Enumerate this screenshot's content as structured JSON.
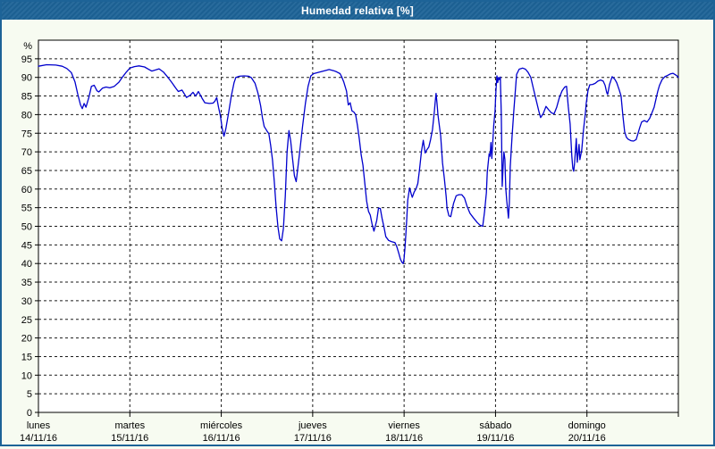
{
  "window": {
    "title": "Humedad relativa [%]"
  },
  "colors": {
    "title_bar": "#1d6397",
    "frame": "#1d6397",
    "page_bg": "#f7fbf1",
    "plot_bg": "#ffffff",
    "grid": "#1a1a1a",
    "line": "#0000cd",
    "text": "#000000"
  },
  "chart_data": {
    "type": "line",
    "title": "Humedad relativa [%]",
    "xlabel": "",
    "ylabel": "%",
    "ylim": [
      0,
      100
    ],
    "ytick_step": 5,
    "ytick_label_max": 95,
    "xlim_days": [
      0,
      7
    ],
    "grid": true,
    "grid_style": "dashed",
    "legend_position": "none",
    "days": [
      {
        "name": "lunes",
        "date": "14/11/16"
      },
      {
        "name": "martes",
        "date": "15/11/16"
      },
      {
        "name": "miércoles",
        "date": "16/11/16"
      },
      {
        "name": "jueves",
        "date": "17/11/16"
      },
      {
        "name": "viernes",
        "date": "18/11/16"
      },
      {
        "name": "sábado",
        "date": "19/11/16"
      },
      {
        "name": "domingo",
        "date": "20/11/16"
      }
    ],
    "series": [
      {
        "name": "Humedad relativa [%]",
        "color": "#0000cd",
        "points": [
          [
            0,
            93
          ],
          [
            0.09,
            93.4
          ],
          [
            0.19,
            93.3
          ],
          [
            0.26,
            93
          ],
          [
            0.31,
            92.4
          ],
          [
            0.36,
            91.3
          ],
          [
            0.4,
            88.8
          ],
          [
            0.43,
            85.5
          ],
          [
            0.46,
            82.6
          ],
          [
            0.48,
            81.6
          ],
          [
            0.5,
            83
          ],
          [
            0.52,
            82
          ],
          [
            0.55,
            84.5
          ],
          [
            0.58,
            87.6
          ],
          [
            0.61,
            87.9
          ],
          [
            0.64,
            86.4
          ],
          [
            0.66,
            86.1
          ],
          [
            0.7,
            87.1
          ],
          [
            0.74,
            87.4
          ],
          [
            0.78,
            87.2
          ],
          [
            0.83,
            87.6
          ],
          [
            0.88,
            88.7
          ],
          [
            0.92,
            90.1
          ],
          [
            0.96,
            91.4
          ],
          [
            1,
            92.5
          ],
          [
            1.05,
            92.9
          ],
          [
            1.1,
            93.1
          ],
          [
            1.16,
            92.8
          ],
          [
            1.21,
            92.1
          ],
          [
            1.24,
            91.7
          ],
          [
            1.28,
            92
          ],
          [
            1.32,
            92.3
          ],
          [
            1.37,
            91.4
          ],
          [
            1.42,
            89.9
          ],
          [
            1.46,
            88.6
          ],
          [
            1.5,
            87.2
          ],
          [
            1.53,
            86.2
          ],
          [
            1.57,
            86.6
          ],
          [
            1.62,
            84.6
          ],
          [
            1.66,
            85.2
          ],
          [
            1.69,
            86
          ],
          [
            1.72,
            85
          ],
          [
            1.75,
            86.2
          ],
          [
            1.79,
            84.4
          ],
          [
            1.82,
            83.2
          ],
          [
            1.87,
            83
          ],
          [
            1.91,
            83.1
          ],
          [
            1.93,
            83.6
          ],
          [
            1.95,
            84.6
          ],
          [
            1.97,
            82
          ],
          [
            1.99,
            79.8
          ],
          [
            2.01,
            76.3
          ],
          [
            2.03,
            74.2
          ],
          [
            2.05,
            76.2
          ],
          [
            2.08,
            80.5
          ],
          [
            2.11,
            85
          ],
          [
            2.14,
            88.6
          ],
          [
            2.16,
            90
          ],
          [
            2.2,
            90.3
          ],
          [
            2.25,
            90.4
          ],
          [
            2.3,
            90.3
          ],
          [
            2.33,
            89.9
          ],
          [
            2.37,
            88.4
          ],
          [
            2.4,
            85.9
          ],
          [
            2.43,
            82.4
          ],
          [
            2.45,
            79.2
          ],
          [
            2.47,
            76.8
          ],
          [
            2.5,
            75.6
          ],
          [
            2.52,
            74.9
          ],
          [
            2.54,
            71.8
          ],
          [
            2.56,
            67.8
          ],
          [
            2.58,
            62
          ],
          [
            2.6,
            55.3
          ],
          [
            2.62,
            49.8
          ],
          [
            2.64,
            46.6
          ],
          [
            2.66,
            46.1
          ],
          [
            2.68,
            49.4
          ],
          [
            2.7,
            58
          ],
          [
            2.72,
            70
          ],
          [
            2.74,
            75.7
          ],
          [
            2.76,
            72.8
          ],
          [
            2.78,
            68
          ],
          [
            2.8,
            63.6
          ],
          [
            2.82,
            62
          ],
          [
            2.83,
            64.2
          ],
          [
            2.86,
            70.3
          ],
          [
            2.89,
            77
          ],
          [
            2.92,
            83
          ],
          [
            2.95,
            87.6
          ],
          [
            2.98,
            90.4
          ],
          [
            3.01,
            91
          ],
          [
            3.07,
            91.4
          ],
          [
            3.13,
            91.8
          ],
          [
            3.18,
            92.1
          ],
          [
            3.23,
            91.8
          ],
          [
            3.26,
            91.5
          ],
          [
            3.3,
            91
          ],
          [
            3.32,
            90
          ],
          [
            3.34,
            88.8
          ],
          [
            3.37,
            86.3
          ],
          [
            3.39,
            82.6
          ],
          [
            3.41,
            83.2
          ],
          [
            3.43,
            81
          ],
          [
            3.45,
            80.7
          ],
          [
            3.47,
            80
          ],
          [
            3.49,
            77
          ],
          [
            3.51,
            73.5
          ],
          [
            3.53,
            69.2
          ],
          [
            3.55,
            66.4
          ],
          [
            3.57,
            61.5
          ],
          [
            3.59,
            56.8
          ],
          [
            3.61,
            54
          ],
          [
            3.63,
            53
          ],
          [
            3.65,
            50.6
          ],
          [
            3.67,
            48.7
          ],
          [
            3.68,
            49.6
          ],
          [
            3.7,
            51.5
          ],
          [
            3.72,
            54.9
          ],
          [
            3.74,
            54.8
          ],
          [
            3.76,
            52
          ],
          [
            3.78,
            49.8
          ],
          [
            3.8,
            47.2
          ],
          [
            3.83,
            46.2
          ],
          [
            3.86,
            45.9
          ],
          [
            3.9,
            45.6
          ],
          [
            3.92,
            44.5
          ],
          [
            3.94,
            42.9
          ],
          [
            3.96,
            41.1
          ],
          [
            3.98,
            40.2
          ],
          [
            3.99,
            40
          ],
          [
            4,
            41.3
          ],
          [
            4.01,
            44.5
          ],
          [
            4.02,
            48.2
          ],
          [
            4.03,
            52.3
          ],
          [
            4.04,
            57
          ],
          [
            4.06,
            60.3
          ],
          [
            4.08,
            58.5
          ],
          [
            4.09,
            57.8
          ],
          [
            4.11,
            59.2
          ],
          [
            4.13,
            60
          ],
          [
            4.15,
            61.5
          ],
          [
            4.17,
            65.5
          ],
          [
            4.19,
            70.2
          ],
          [
            4.21,
            73.1
          ],
          [
            4.23,
            69.7
          ],
          [
            4.25,
            70.6
          ],
          [
            4.27,
            71.3
          ],
          [
            4.29,
            73.3
          ],
          [
            4.31,
            76
          ],
          [
            4.33,
            80.6
          ],
          [
            4.34,
            83.3
          ],
          [
            4.35,
            85.7
          ],
          [
            4.36,
            83
          ],
          [
            4.37,
            80
          ],
          [
            4.38,
            78.1
          ],
          [
            4.4,
            74.2
          ],
          [
            4.42,
            67.1
          ],
          [
            4.44,
            63
          ],
          [
            4.46,
            58
          ],
          [
            4.47,
            54.8
          ],
          [
            4.49,
            52.8
          ],
          [
            4.51,
            52.6
          ],
          [
            4.54,
            56.1
          ],
          [
            4.57,
            58.2
          ],
          [
            4.6,
            58.5
          ],
          [
            4.63,
            58.5
          ],
          [
            4.66,
            57.6
          ],
          [
            4.69,
            55.3
          ],
          [
            4.72,
            53.5
          ],
          [
            4.76,
            52.2
          ],
          [
            4.8,
            51
          ],
          [
            4.83,
            50.3
          ],
          [
            4.86,
            50
          ],
          [
            4.88,
            54
          ],
          [
            4.9,
            59
          ],
          [
            4.91,
            64.5
          ],
          [
            4.93,
            69.5
          ],
          [
            4.94,
            68.8
          ],
          [
            4.95,
            72.5
          ],
          [
            4.96,
            68.2
          ],
          [
            4.97,
            72.8
          ],
          [
            4.98,
            77
          ],
          [
            4.995,
            81
          ],
          [
            5.005,
            86.5
          ],
          [
            5.015,
            90.4
          ],
          [
            5.024,
            88.6
          ],
          [
            5.034,
            90
          ],
          [
            5.044,
            89.4
          ],
          [
            5.053,
            90.1
          ],
          [
            5.063,
            80
          ],
          [
            5.073,
            60.7
          ],
          [
            5.083,
            66
          ],
          [
            5.092,
            70
          ],
          [
            5.102,
            68
          ],
          [
            5.112,
            60.2
          ],
          [
            5.122,
            57.1
          ],
          [
            5.132,
            54.7
          ],
          [
            5.141,
            52.2
          ],
          [
            5.151,
            56.3
          ],
          [
            5.161,
            66
          ],
          [
            5.181,
            74
          ],
          [
            5.2,
            81
          ],
          [
            5.23,
            90.8
          ],
          [
            5.259,
            92.2
          ],
          [
            5.298,
            92.5
          ],
          [
            5.327,
            92.2
          ],
          [
            5.356,
            91.4
          ],
          [
            5.386,
            90
          ],
          [
            5.415,
            86.9
          ],
          [
            5.444,
            84
          ],
          [
            5.474,
            80.9
          ],
          [
            5.493,
            79.2
          ],
          [
            5.523,
            80.3
          ],
          [
            5.552,
            82.2
          ],
          [
            5.581,
            81.3
          ],
          [
            5.611,
            80.5
          ],
          [
            5.64,
            80.2
          ],
          [
            5.669,
            82
          ],
          [
            5.699,
            84.6
          ],
          [
            5.728,
            86.4
          ],
          [
            5.757,
            87.4
          ],
          [
            5.777,
            87.6
          ],
          [
            5.796,
            82.2
          ],
          [
            5.816,
            77.5
          ],
          [
            5.835,
            68.8
          ],
          [
            5.845,
            65.6
          ],
          [
            5.855,
            64.8
          ],
          [
            5.865,
            67
          ],
          [
            5.884,
            73.6
          ],
          [
            5.894,
            67.2
          ],
          [
            5.914,
            72
          ],
          [
            5.923,
            67.9
          ],
          [
            5.943,
            70.5
          ],
          [
            5.963,
            76
          ],
          [
            5.982,
            80.2
          ],
          [
            5.992,
            83
          ],
          [
            6.012,
            86.5
          ],
          [
            6.031,
            88
          ],
          [
            6.061,
            88.1
          ],
          [
            6.09,
            88.4
          ],
          [
            6.119,
            89
          ],
          [
            6.149,
            89.3
          ],
          [
            6.178,
            89
          ],
          [
            6.198,
            87.9
          ],
          [
            6.217,
            85.9
          ],
          [
            6.227,
            85.4
          ],
          [
            6.246,
            88
          ],
          [
            6.276,
            90.2
          ],
          [
            6.305,
            89.5
          ],
          [
            6.325,
            88.6
          ],
          [
            6.354,
            86.6
          ],
          [
            6.373,
            85
          ],
          [
            6.393,
            79.8
          ],
          [
            6.412,
            75.4
          ],
          [
            6.432,
            73.9
          ],
          [
            6.451,
            73.4
          ],
          [
            6.481,
            73
          ],
          [
            6.51,
            72.9
          ],
          [
            6.539,
            73.3
          ],
          [
            6.559,
            75
          ],
          [
            6.579,
            76.6
          ],
          [
            6.598,
            78
          ],
          [
            6.628,
            78.4
          ],
          [
            6.657,
            78
          ],
          [
            6.686,
            79
          ],
          [
            6.715,
            80.7
          ],
          [
            6.735,
            82
          ],
          [
            6.754,
            84
          ],
          [
            6.774,
            86.2
          ],
          [
            6.793,
            87.8
          ],
          [
            6.822,
            89.4
          ],
          [
            6.852,
            90.2
          ],
          [
            6.881,
            90.5
          ],
          [
            6.91,
            90.9
          ],
          [
            6.94,
            91.1
          ],
          [
            6.969,
            90.7
          ],
          [
            6.989,
            90.3
          ],
          [
            7,
            90
          ]
        ]
      }
    ]
  }
}
